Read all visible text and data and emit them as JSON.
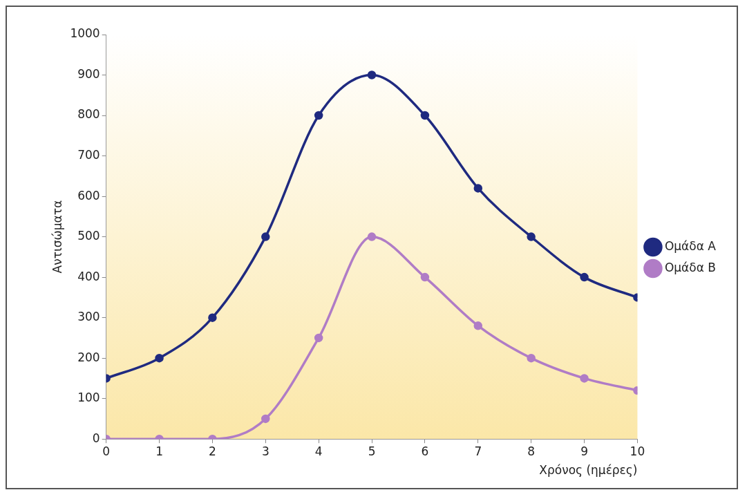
{
  "chart_data": {
    "type": "line",
    "xlabel": "Χρόνος (ημέρες)",
    "ylabel": "Αντισώματα",
    "x": [
      0,
      1,
      2,
      3,
      4,
      5,
      6,
      7,
      8,
      9,
      10
    ],
    "series": [
      {
        "name": "Ομάδα A",
        "color": "#1f2a80",
        "values": [
          150,
          200,
          300,
          500,
          800,
          900,
          800,
          620,
          500,
          400,
          350
        ]
      },
      {
        "name": "Ομάδα B",
        "color": "#b07cc6",
        "values": [
          0,
          0,
          0,
          50,
          250,
          500,
          400,
          280,
          200,
          150,
          120
        ]
      }
    ],
    "xlim": [
      0,
      10
    ],
    "xticks": [
      0,
      1,
      2,
      3,
      4,
      5,
      6,
      7,
      8,
      9,
      10
    ],
    "ylim": [
      0,
      1000
    ],
    "yticks": [
      0,
      100,
      200,
      300,
      400,
      500,
      600,
      700,
      800,
      900,
      1000
    ],
    "grid": false,
    "legend": "right",
    "marker": "circle",
    "line_style": "solid"
  }
}
